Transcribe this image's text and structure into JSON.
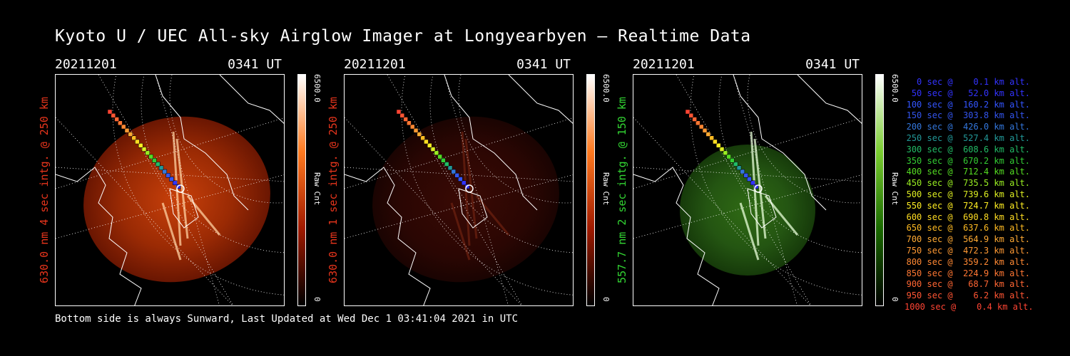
{
  "title": "Kyoto U / UEC All-sky Airglow Imager at Longyearbyen — Realtime Data",
  "footer": "Bottom side is always Sunward, Last Updated at Wed Dec  1 03:41:04 2021 in UTC",
  "panels": [
    {
      "date": "20211201",
      "time": "0341 UT",
      "label": "630.0 nm 4 sec intg. @ 250 km",
      "label_color": "#e8351c",
      "cbar_max": "6500.0",
      "cbar_zero": "0",
      "cbar_unit": "Raw Cnt",
      "tint": "red-bright"
    },
    {
      "date": "20211201",
      "time": "0341 UT",
      "label": "630.0 nm 1 sec intg. @ 250 km",
      "label_color": "#e8351c",
      "cbar_max": "6500.0",
      "cbar_zero": "0",
      "cbar_unit": "Raw Cnt",
      "tint": "red-dim"
    },
    {
      "date": "20211201",
      "time": "0341 UT",
      "label": "557.7 nm 2 sec intg. @ 150 km",
      "label_color": "#33d633",
      "cbar_max": "6500.0",
      "cbar_zero": "0",
      "cbar_unit": "Raw Cnt",
      "tint": "green"
    }
  ],
  "legend": [
    {
      "text": "0 sec @    0.1 km alt.",
      "color": "#3333ff"
    },
    {
      "text": "50 sec @   52.0 km alt.",
      "color": "#3333ff"
    },
    {
      "text": "100 sec @  160.2 km alt.",
      "color": "#3355ff"
    },
    {
      "text": "150 sec @  303.8 km alt.",
      "color": "#3355ee"
    },
    {
      "text": "200 sec @  426.0 km alt.",
      "color": "#3377dd"
    },
    {
      "text": "250 sec @  527.4 km alt.",
      "color": "#229999"
    },
    {
      "text": "300 sec @  608.6 km alt.",
      "color": "#22bb66"
    },
    {
      "text": "350 sec @  670.2 km alt.",
      "color": "#33cc33"
    },
    {
      "text": "400 sec @  712.4 km alt.",
      "color": "#55dd22"
    },
    {
      "text": "450 sec @  735.5 km alt.",
      "color": "#99ee22"
    },
    {
      "text": "500 sec @  739.6 km alt.",
      "color": "#ddee22"
    },
    {
      "text": "550 sec @  724.7 km alt.",
      "color": "#ffee22"
    },
    {
      "text": "600 sec @  690.8 km alt.",
      "color": "#ffdd22"
    },
    {
      "text": "650 sec @  637.6 km alt.",
      "color": "#ffbb22"
    },
    {
      "text": "700 sec @  564.9 km alt.",
      "color": "#ffaa33"
    },
    {
      "text": "750 sec @  472.3 km alt.",
      "color": "#ff9933"
    },
    {
      "text": "800 sec @  359.2 km alt.",
      "color": "#ff8833"
    },
    {
      "text": "850 sec @  224.9 km alt.",
      "color": "#ff7733"
    },
    {
      "text": "900 sec @   68.7 km alt.",
      "color": "#ff6633"
    },
    {
      "text": "950 sec @    6.2 km alt.",
      "color": "#ff5533"
    },
    {
      "text": "1000 sec @    0.4 km alt.",
      "color": "#ff4433"
    }
  ]
}
